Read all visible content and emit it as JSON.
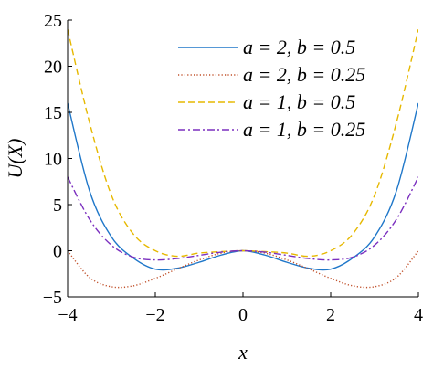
{
  "chart_data": {
    "type": "line",
    "xlabel": "x",
    "ylabel": "U(X)",
    "xlim": [
      -4,
      4
    ],
    "ylim": [
      -5,
      25
    ],
    "x_ticks": [
      -4,
      -2,
      0,
      2,
      4
    ],
    "y_ticks": [
      -5,
      0,
      5,
      10,
      15,
      20,
      25
    ],
    "x_tick_labels": [
      "−4",
      "−2",
      "0",
      "2",
      "4"
    ],
    "y_tick_labels": [
      "−5",
      "0",
      "5",
      "10",
      "15",
      "20",
      "25"
    ],
    "grid": false,
    "legend_position": "top-right",
    "x": [
      -4.0,
      -3.5,
      -3.0,
      -2.5,
      -2.0,
      -1.5,
      -1.0,
      -0.5,
      0.0,
      0.5,
      1.0,
      1.5,
      2.0,
      2.5,
      3.0,
      3.5,
      4.0
    ],
    "series": [
      {
        "name": "a = 2, b = 0.5",
        "color": "#1f77c9",
        "dash": "solid",
        "values": [
          16.0,
          6.5,
          1.5,
          -0.8,
          -2.0,
          -1.9,
          -1.25,
          -0.47,
          0.0,
          -0.47,
          -1.25,
          -1.9,
          -2.0,
          -0.8,
          1.5,
          6.5,
          16.0
        ]
      },
      {
        "name": "a = 2, b = 0.25",
        "color": "#c0502a",
        "dash": "dotted",
        "values": [
          0.0,
          -2.9,
          -3.9,
          -3.8,
          -3.0,
          -1.97,
          -1.0,
          -0.26,
          0.0,
          -0.26,
          -1.0,
          -1.97,
          -3.0,
          -3.8,
          -3.9,
          -2.9,
          0.0
        ]
      },
      {
        "name": "a = 1, b = 0.5",
        "color": "#e6b800",
        "dash": "dashed",
        "values": [
          24.0,
          13.9,
          6.0,
          1.8,
          0.0,
          -0.6,
          -0.25,
          -0.1,
          0.0,
          -0.1,
          -0.25,
          -0.6,
          0.0,
          1.8,
          6.0,
          13.9,
          24.0
        ]
      },
      {
        "name": "a = 1, b = 0.25",
        "color": "#7b2fbf",
        "dash": "dashdot",
        "values": [
          8.0,
          3.4,
          0.6,
          -0.7,
          -1.0,
          -0.85,
          -0.5,
          -0.15,
          0.0,
          -0.15,
          -0.5,
          -0.85,
          -1.0,
          -0.7,
          0.6,
          3.4,
          8.0
        ]
      }
    ]
  }
}
